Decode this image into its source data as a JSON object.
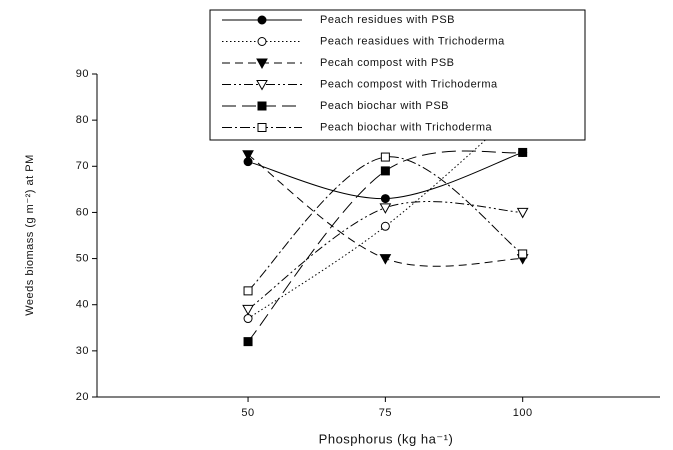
{
  "chart_data": {
    "type": "line",
    "x_label": "Phosphorus (kg ha⁻¹)",
    "y_label": "Weeds biomass (g m⁻²) at PM",
    "x": [
      50,
      75,
      100
    ],
    "xlim": [
      22.5,
      125
    ],
    "xticks": [
      50,
      75,
      100
    ],
    "ylim": [
      20,
      90
    ],
    "yticks": [
      20,
      30,
      40,
      50,
      60,
      70,
      80,
      90
    ],
    "legend": "top",
    "series": [
      {
        "name": "Peach residues with PSB",
        "color": "#000000",
        "marker": "circle-filled",
        "dash": "solid",
        "values": [
          71,
          63,
          73
        ]
      },
      {
        "name": "Peach reasidues with Trichoderma",
        "color": "#000000",
        "marker": "circle-open",
        "dash": "dotted",
        "values": [
          37,
          57,
          83
        ]
      },
      {
        "name": "Pecah compost with PSB",
        "color": "#000000",
        "marker": "triangle-filled",
        "dash": "dashed",
        "values": [
          72.5,
          50,
          50
        ]
      },
      {
        "name": "Peach compost with Trichoderma",
        "color": "#000000",
        "marker": "triangle-open",
        "dash": "dash-dot-dot",
        "values": [
          39,
          61,
          60
        ]
      },
      {
        "name": "Peach biochar with PSB",
        "color": "#000000",
        "marker": "square-filled",
        "dash": "long-dash",
        "values": [
          32,
          69,
          73
        ]
      },
      {
        "name": "Peach biochar with Trichoderma",
        "color": "#000000",
        "marker": "square-open",
        "dash": "dash-dot",
        "values": [
          43,
          72,
          51
        ]
      }
    ]
  }
}
